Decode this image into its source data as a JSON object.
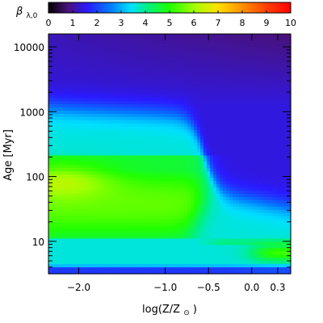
{
  "chart_data": {
    "type": "heatmap",
    "colorbar": {
      "label_main": "β",
      "label_sub": "λ,0",
      "range": [
        0,
        10
      ],
      "ticks": [
        "0",
        "1",
        "2",
        "3",
        "4",
        "5",
        "6",
        "7",
        "8",
        "9",
        "10"
      ],
      "colormap_stops": [
        {
          "value": 0,
          "color": "#000000"
        },
        {
          "value": 0.8,
          "color": "#48127a"
        },
        {
          "value": 1.6,
          "color": "#2a1aff"
        },
        {
          "value": 2.6,
          "color": "#0080ff"
        },
        {
          "value": 3.4,
          "color": "#00e0ff"
        },
        {
          "value": 4.1,
          "color": "#00f080"
        },
        {
          "value": 5.0,
          "color": "#20ff00"
        },
        {
          "value": 6.0,
          "color": "#a0ff00"
        },
        {
          "value": 7.0,
          "color": "#ffe000"
        },
        {
          "value": 8.0,
          "color": "#ff9000"
        },
        {
          "value": 9.0,
          "color": "#ff4000"
        },
        {
          "value": 10,
          "color": "#ff0000"
        }
      ]
    },
    "xlabel": "log(Z/Z",
    "xlabel_sub": "⊙",
    "xlabel_close": ")",
    "ylabel": "Age [Myr]",
    "xlim": [
      -2.35,
      0.45
    ],
    "ylim_log10": [
      0.5,
      4.2
    ],
    "x_scale": "linear",
    "y_scale": "log",
    "x_ticks": [
      {
        "value": -2.0,
        "label": "−2.0"
      },
      {
        "value": -1.0,
        "label": "−1.0"
      },
      {
        "value": -0.5,
        "label": "−0.5"
      },
      {
        "value": 0.0,
        "label": "0.0"
      },
      {
        "value": 0.3,
        "label": "0.3"
      }
    ],
    "y_ticks": [
      {
        "value": 10,
        "label": "10"
      },
      {
        "value": 100,
        "label": "100"
      },
      {
        "value": 1000,
        "label": "1000"
      },
      {
        "value": 10000,
        "label": "10000"
      }
    ],
    "grid": false
  }
}
